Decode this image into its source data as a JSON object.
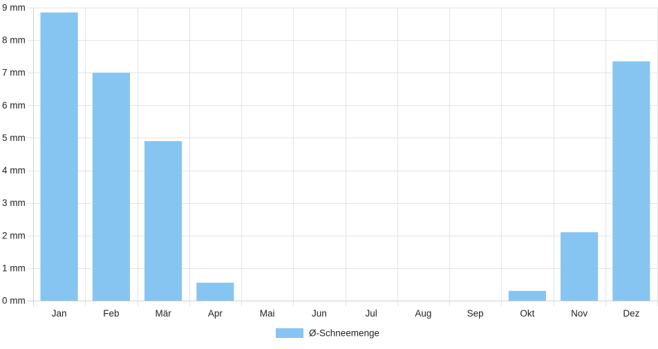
{
  "chart_data": {
    "type": "bar",
    "categories": [
      "Jan",
      "Feb",
      "Mär",
      "Apr",
      "Mai",
      "Jun",
      "Jul",
      "Aug",
      "Sep",
      "Okt",
      "Nov",
      "Dez"
    ],
    "series": [
      {
        "name": "Ø-Schneemenge",
        "values": [
          8.85,
          7.0,
          4.9,
          0.55,
          0,
          0,
          0,
          0,
          0,
          0.3,
          2.1,
          7.35
        ],
        "color": "#86c5f2"
      }
    ],
    "y_ticks": [
      "0 mm",
      "1 mm",
      "2 mm",
      "3 mm",
      "4 mm",
      "5 mm",
      "6 mm",
      "7 mm",
      "8 mm",
      "9 mm"
    ],
    "ylim": [
      0,
      9
    ],
    "y_unit": "mm",
    "title": "",
    "xlabel": "",
    "ylabel": "",
    "grid": true,
    "legend_position": "bottom-center"
  }
}
